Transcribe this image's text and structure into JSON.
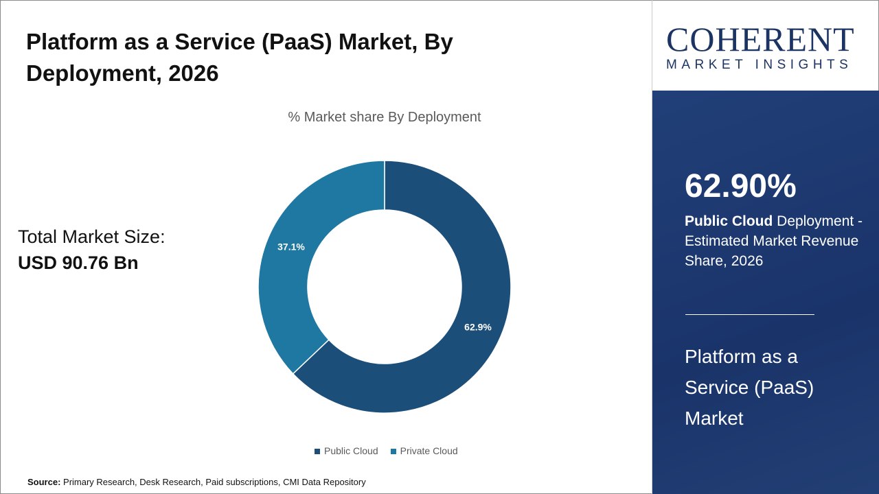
{
  "header": {
    "title": "Platform as a Service (PaaS) Market, By Deployment, 2026"
  },
  "total": {
    "label": "Total Market Size:",
    "value": "USD 90.76 Bn"
  },
  "source": {
    "label": "Source:",
    "text": " Primary Research, Desk Research, Paid subscriptions, CMI Data Repository"
  },
  "logo": {
    "name": "COHERENT",
    "tagline": "MARKET INSIGHTS"
  },
  "side": {
    "percent": "62.90%",
    "desc_bold": "Public Cloud",
    "desc_rest": " Deployment - Estimated Market Revenue Share, 2026",
    "market": "Platform as a Service (PaaS) Market"
  },
  "chart_data": {
    "type": "pie",
    "donut": true,
    "title": "% Market share By Deployment",
    "categories": [
      "Public Cloud",
      "Private Cloud"
    ],
    "values": [
      62.9,
      37.1
    ],
    "labels": [
      "62.9%",
      "37.1%"
    ],
    "colors": [
      "#1c4e7a",
      "#1f78a2"
    ],
    "legend": "bottom"
  }
}
